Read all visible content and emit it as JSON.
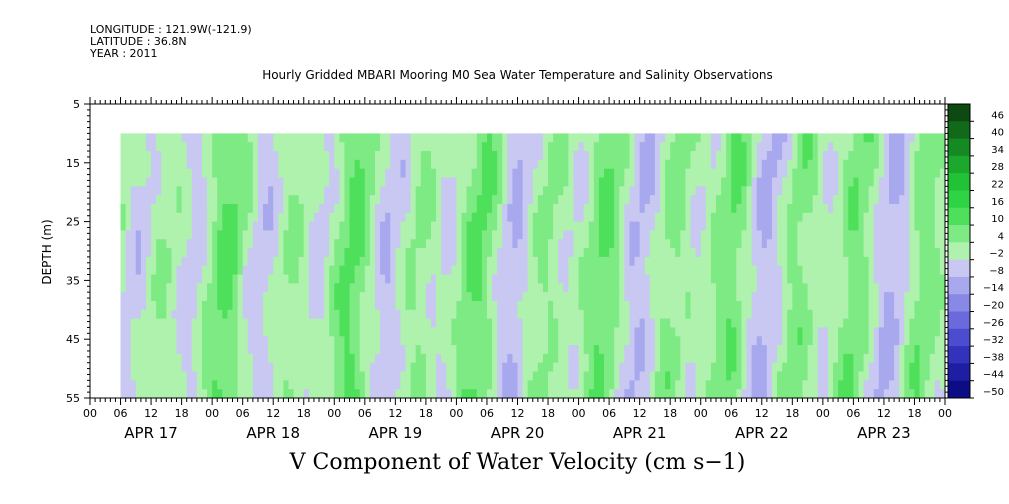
{
  "header": {
    "longitude": "LONGITUDE : 121.9W(-121.9)",
    "latitude": "LATITUDE : 36.8N",
    "year": "YEAR : 2011"
  },
  "chart_data": {
    "type": "heatmap",
    "title": "Hourly Gridded MBARI Mooring M0 Sea Water Temperature and Salinity Observations",
    "subtitle": "V Component of Water Velocity (cm s−1)",
    "ylabel": "DEPTH (m)",
    "y_range": [
      5,
      55
    ],
    "y_ticks": [
      5,
      15,
      25,
      35,
      45,
      55
    ],
    "y_ticks_labels": [
      "5",
      "15",
      "25",
      "35",
      "45",
      "55"
    ],
    "y_reversed": true,
    "x_hour_ticks": [
      "00",
      "06",
      "12",
      "18",
      "00",
      "06",
      "12",
      "18",
      "00",
      "06",
      "12",
      "18",
      "00",
      "06",
      "12",
      "18",
      "00",
      "06",
      "12",
      "18",
      "00",
      "06",
      "12",
      "18",
      "00",
      "06",
      "12",
      "18",
      "00"
    ],
    "x_day_labels": [
      "APR 17",
      "APR 18",
      "APR 19",
      "APR 20",
      "APR 21",
      "APR 22",
      "APR 23"
    ],
    "data_extent": {
      "start_hour_of_apr17": 6,
      "end_hour_of_apr23": 24,
      "depth_top": 10,
      "depth_bottom": 55
    },
    "colorbar": {
      "labels": [
        "46",
        "40",
        "34",
        "28",
        "22",
        "16",
        "10",
        "4",
        "−2",
        "−8",
        "−14",
        "−20",
        "−26",
        "−32",
        "−38",
        "−44",
        "−50"
      ],
      "colors": [
        "#0d4a12",
        "#116a1a",
        "#168a22",
        "#1ca82c",
        "#22c236",
        "#2ed443",
        "#4ee05a",
        "#7eea84",
        "#aef2ae",
        "#c8c8f2",
        "#a8a8ee",
        "#8888e6",
        "#6a6adc",
        "#4c4cd0",
        "#3232bc",
        "#1e1ea2",
        "#0c0c84"
      ]
    },
    "series_description": "V velocity field, mostly in range −14 to +16 cm/s, alternating positive (green) and negative (blue) bands with a semi-diurnal pattern"
  }
}
